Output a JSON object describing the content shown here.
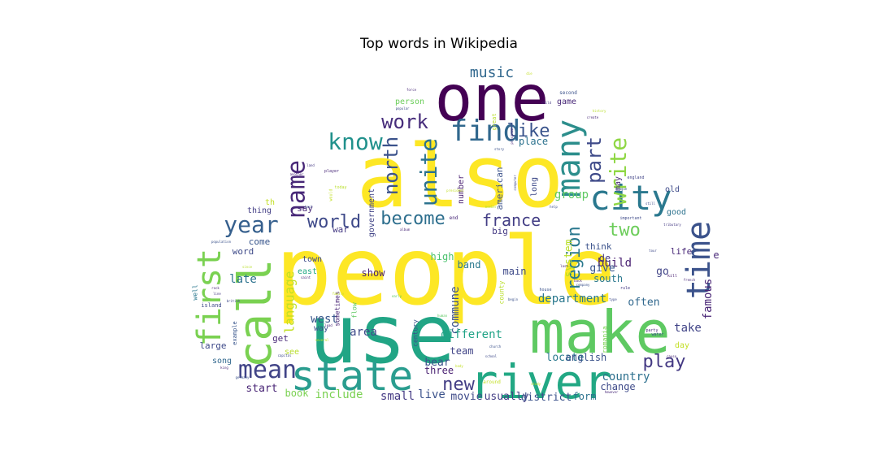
{
  "chart_data": {
    "type": "wordcloud",
    "title": "Top words in Wikipedia",
    "shape": "cloud",
    "colormap": "viridis",
    "words": [
      {
        "text": "people",
        "weight": 1.0,
        "color": "#fde725"
      },
      {
        "text": "also",
        "weight": 0.97,
        "color": "#fde725"
      },
      {
        "text": "use",
        "weight": 0.93,
        "color": "#21a585"
      },
      {
        "text": "make",
        "weight": 0.82,
        "color": "#5ec962"
      },
      {
        "text": "one",
        "weight": 0.78,
        "color": "#440154"
      },
      {
        "text": "river",
        "weight": 0.62,
        "color": "#22a884"
      },
      {
        "text": "call",
        "weight": 0.6,
        "color": "#7ad151"
      },
      {
        "text": "state",
        "weight": 0.52,
        "color": "#2a9d8f"
      },
      {
        "text": "time",
        "weight": 0.45,
        "color": "#3b528b"
      },
      {
        "text": "many",
        "weight": 0.44,
        "color": "#2c8e8c"
      },
      {
        "text": "city",
        "weight": 0.43,
        "color": "#2a788e"
      },
      {
        "text": "first",
        "weight": 0.43,
        "color": "#7ad151"
      },
      {
        "text": "find",
        "weight": 0.4,
        "color": "#31688e"
      },
      {
        "text": "mean",
        "weight": 0.34,
        "color": "#414487"
      },
      {
        "text": "name",
        "weight": 0.33,
        "color": "#482878"
      },
      {
        "text": "year",
        "weight": 0.32,
        "color": "#355f8d"
      },
      {
        "text": "know",
        "weight": 0.32,
        "color": "#21918c"
      },
      {
        "text": "write",
        "weight": 0.31,
        "color": "#8fd744"
      },
      {
        "text": "unite",
        "weight": 0.3,
        "color": "#2c728e"
      },
      {
        "text": "part",
        "weight": 0.29,
        "color": "#3e4a89"
      },
      {
        "text": "work",
        "weight": 0.28,
        "color": "#472d7b"
      },
      {
        "text": "north",
        "weight": 0.27,
        "color": "#3b528b"
      },
      {
        "text": "world",
        "weight": 0.27,
        "color": "#3e4989"
      },
      {
        "text": "become",
        "weight": 0.27,
        "color": "#2e6f8e"
      },
      {
        "text": "region",
        "weight": 0.25,
        "color": "#2a788e"
      },
      {
        "text": "two",
        "weight": 0.25,
        "color": "#6ccd5a"
      },
      {
        "text": "play",
        "weight": 0.25,
        "color": "#443983"
      },
      {
        "text": "new",
        "weight": 0.24,
        "color": "#433e85"
      },
      {
        "text": "like",
        "weight": 0.23,
        "color": "#3a548c"
      },
      {
        "text": "france",
        "weight": 0.22,
        "color": "#433e85"
      },
      {
        "text": "music",
        "weight": 0.2,
        "color": "#31688e"
      },
      {
        "text": "language",
        "weight": 0.17,
        "color": "#c2df23"
      },
      {
        "text": "department",
        "weight": 0.17,
        "color": "#2a788e"
      },
      {
        "text": "commune",
        "weight": 0.16,
        "color": "#3b528b"
      },
      {
        "text": "famous",
        "weight": 0.15,
        "color": "#482475"
      },
      {
        "text": "different",
        "weight": 0.15,
        "color": "#20a386"
      },
      {
        "text": "country",
        "weight": 0.15,
        "color": "#2d708e"
      },
      {
        "text": "include",
        "weight": 0.15,
        "color": "#7ad151"
      },
      {
        "text": "live",
        "weight": 0.15,
        "color": "#3b528b"
      },
      {
        "text": "take",
        "weight": 0.15,
        "color": "#414487"
      },
      {
        "text": "build",
        "weight": 0.15,
        "color": "#481f71"
      },
      {
        "text": "group",
        "weight": 0.14,
        "color": "#5ec962"
      },
      {
        "text": "system",
        "weight": 0.13,
        "color": "#b8de29"
      },
      {
        "text": "late",
        "weight": 0.14,
        "color": "#2c728e"
      },
      {
        "text": "west",
        "weight": 0.14,
        "color": "#39568c"
      },
      {
        "text": "area",
        "weight": 0.14,
        "color": "#3e4a89"
      },
      {
        "text": "small",
        "weight": 0.14,
        "color": "#443983"
      },
      {
        "text": "movie",
        "weight": 0.13,
        "color": "#3e4a89"
      },
      {
        "text": "usually",
        "weight": 0.13,
        "color": "#433e85"
      },
      {
        "text": "district",
        "weight": 0.13,
        "color": "#3b528b"
      },
      {
        "text": "form",
        "weight": 0.12,
        "color": "#2c728e"
      },
      {
        "text": "change",
        "weight": 0.12,
        "color": "#3e4a89"
      },
      {
        "text": "locate",
        "weight": 0.13,
        "color": "#2a788e"
      },
      {
        "text": "english",
        "weight": 0.12,
        "color": "#3b528b"
      },
      {
        "text": "start",
        "weight": 0.13,
        "color": "#482475"
      },
      {
        "text": "book",
        "weight": 0.12,
        "color": "#7ad151"
      },
      {
        "text": "three",
        "weight": 0.12,
        "color": "#481f71"
      },
      {
        "text": "bear",
        "weight": 0.13,
        "color": "#3b528b"
      },
      {
        "text": "team",
        "weight": 0.12,
        "color": "#414487"
      },
      {
        "text": "show",
        "weight": 0.12,
        "color": "#481f71"
      },
      {
        "text": "band",
        "weight": 0.12,
        "color": "#2a788e"
      },
      {
        "text": "high",
        "weight": 0.12,
        "color": "#4ac16d"
      },
      {
        "text": "main",
        "weight": 0.12,
        "color": "#3e4a89"
      },
      {
        "text": "give",
        "weight": 0.13,
        "color": "#39568c"
      },
      {
        "text": "south",
        "weight": 0.12,
        "color": "#2a788e"
      },
      {
        "text": "often",
        "weight": 0.13,
        "color": "#31688e"
      },
      {
        "text": "go",
        "weight": 0.13,
        "color": "#414487"
      },
      {
        "text": "de",
        "weight": 0.12,
        "color": "#443983"
      },
      {
        "text": "life",
        "weight": 0.11,
        "color": "#482878"
      },
      {
        "text": "good",
        "weight": 0.1,
        "color": "#2c728e"
      },
      {
        "text": "old",
        "weight": 0.1,
        "color": "#3e4a89"
      },
      {
        "text": "may",
        "weight": 0.1,
        "color": "#482878"
      },
      {
        "text": "think",
        "weight": 0.11,
        "color": "#3b528b"
      },
      {
        "text": "big",
        "weight": 0.11,
        "color": "#443983"
      },
      {
        "text": "game",
        "weight": 0.1,
        "color": "#482878"
      },
      {
        "text": "place",
        "weight": 0.12,
        "color": "#2c728e"
      },
      {
        "text": "long",
        "weight": 0.1,
        "color": "#3e4a89"
      },
      {
        "text": "american",
        "weight": 0.11,
        "color": "#3b528b"
      },
      {
        "text": "number",
        "weight": 0.1,
        "color": "#481f71"
      },
      {
        "text": "government",
        "weight": 0.1,
        "color": "#414487"
      },
      {
        "text": "person",
        "weight": 0.1,
        "color": "#6ccd5a"
      },
      {
        "text": "word",
        "weight": 0.11,
        "color": "#3e4a89"
      },
      {
        "text": "come",
        "weight": 0.11,
        "color": "#39568c"
      },
      {
        "text": "thing",
        "weight": 0.1,
        "color": "#433e85"
      },
      {
        "text": "say",
        "weight": 0.11,
        "color": "#482878"
      },
      {
        "text": "war",
        "weight": 0.11,
        "color": "#443983"
      },
      {
        "text": "th",
        "weight": 0.1,
        "color": "#c2df23"
      },
      {
        "text": "town",
        "weight": 0.1,
        "color": "#3e4a89"
      },
      {
        "text": "east",
        "weight": 0.1,
        "color": "#22a884"
      },
      {
        "text": "way",
        "weight": 0.1,
        "color": "#3b528b"
      },
      {
        "text": "get",
        "weight": 0.11,
        "color": "#482878"
      },
      {
        "text": "large",
        "weight": 0.11,
        "color": "#3e4a89"
      },
      {
        "text": "song",
        "weight": 0.1,
        "color": "#31688e"
      },
      {
        "text": "see",
        "weight": 0.1,
        "color": "#b8de29"
      },
      {
        "text": "day",
        "weight": 0.1,
        "color": "#c2df23"
      },
      {
        "text": "flow",
        "weight": 0.08,
        "color": "#5ec962"
      },
      {
        "text": "century",
        "weight": 0.08,
        "color": "#3b528b"
      },
      {
        "text": "county",
        "weight": 0.08,
        "color": "#b8de29"
      },
      {
        "text": "romania",
        "weight": 0.08,
        "color": "#7ad151"
      },
      {
        "text": "sometimes",
        "weight": 0.08,
        "color": "#482475"
      },
      {
        "text": "island",
        "weight": 0.07,
        "color": "#3e4a89"
      },
      {
        "text": "example",
        "weight": 0.07,
        "color": "#39568c"
      },
      {
        "text": "well",
        "weight": 0.08,
        "color": "#2a788e"
      },
      {
        "text": "great",
        "weight": 0.07,
        "color": "#b8de29"
      },
      {
        "text": "second",
        "weight": 0.06,
        "color": "#3b528b"
      },
      {
        "text": "end",
        "weight": 0.06,
        "color": "#482878"
      },
      {
        "text": "today",
        "weight": 0.05,
        "color": "#b8de29"
      },
      {
        "text": "player",
        "weight": 0.05,
        "color": "#482878"
      },
      {
        "text": "around",
        "weight": 0.06,
        "color": "#c2df23"
      },
      {
        "text": "important",
        "weight": 0.05,
        "color": "#3e4a89"
      },
      {
        "text": "house",
        "weight": 0.05,
        "color": "#3b528b"
      },
      {
        "text": "rule",
        "weight": 0.05,
        "color": "#443983"
      },
      {
        "text": "kill",
        "weight": 0.05,
        "color": "#481f71"
      },
      {
        "text": "water",
        "weight": 0.05,
        "color": "#3b528b"
      },
      {
        "text": "party",
        "weight": 0.05,
        "color": "#482878"
      },
      {
        "text": "england",
        "weight": 0.05,
        "color": "#414487"
      },
      {
        "text": "league",
        "weight": 0.04,
        "color": "#3b528b"
      },
      {
        "text": "still",
        "weight": 0.04,
        "color": "#3e4a89"
      },
      {
        "text": "create",
        "weight": 0.04,
        "color": "#482878"
      },
      {
        "text": "history",
        "weight": 0.04,
        "color": "#b8de29"
      },
      {
        "text": "force",
        "weight": 0.04,
        "color": "#482878"
      },
      {
        "text": "popular",
        "weight": 0.04,
        "color": "#3e4a89"
      },
      {
        "text": "child",
        "weight": 0.04,
        "color": "#443983"
      },
      {
        "text": "province",
        "weight": 0.04,
        "color": "#482878"
      },
      {
        "text": "story",
        "weight": 0.04,
        "color": "#3b528b"
      },
      {
        "text": "computer",
        "weight": 0.04,
        "color": "#3e4a89"
      },
      {
        "text": "member",
        "weight": 0.04,
        "color": "#b8de29"
      },
      {
        "text": "population",
        "weight": 0.04,
        "color": "#3b528b"
      },
      {
        "text": "another",
        "weight": 0.04,
        "color": "#482878"
      },
      {
        "text": "land",
        "weight": 0.04,
        "color": "#443983"
      },
      {
        "text": "would",
        "weight": 0.05,
        "color": "#c2df23"
      },
      {
        "text": "best",
        "weight": 0.04,
        "color": "#3e4a89"
      },
      {
        "text": "album",
        "weight": 0.04,
        "color": "#482878"
      },
      {
        "text": "president",
        "weight": 0.04,
        "color": "#c2df23"
      },
      {
        "text": "family",
        "weight": 0.04,
        "color": "#c2df23"
      },
      {
        "text": "early",
        "weight": 0.04,
        "color": "#5ec962"
      },
      {
        "text": "british",
        "weight": 0.04,
        "color": "#3e4a89"
      },
      {
        "text": "rock",
        "weight": 0.04,
        "color": "#482878"
      },
      {
        "text": "line",
        "weight": 0.04,
        "color": "#443983"
      },
      {
        "text": "since",
        "weight": 0.04,
        "color": "#b8de29"
      },
      {
        "text": "saint",
        "weight": 0.04,
        "color": "#482878"
      },
      {
        "text": "capital",
        "weight": 0.04,
        "color": "#3e4a89"
      },
      {
        "text": "king",
        "weight": 0.04,
        "color": "#482878"
      },
      {
        "text": "germany",
        "weight": 0.04,
        "color": "#3b528b"
      },
      {
        "text": "several",
        "weight": 0.04,
        "color": "#c2df23"
      },
      {
        "text": "lead",
        "weight": 0.04,
        "color": "#482878"
      },
      {
        "text": "human",
        "weight": 0.04,
        "color": "#5ec962"
      },
      {
        "text": "school",
        "weight": 0.04,
        "color": "#3e4a89"
      },
      {
        "text": "church",
        "weight": 0.04,
        "color": "#3b528b"
      },
      {
        "text": "body",
        "weight": 0.04,
        "color": "#c2df23"
      },
      {
        "text": "study",
        "weight": 0.04,
        "color": "#c2df23"
      },
      {
        "text": "however",
        "weight": 0.04,
        "color": "#482878"
      },
      {
        "text": "cause",
        "weight": 0.04,
        "color": "#482878"
      },
      {
        "text": "begin",
        "weight": 0.04,
        "color": "#3b528b"
      },
      {
        "text": "type",
        "weight": 0.04,
        "color": "#3e4a89"
      },
      {
        "text": "back",
        "weight": 0.04,
        "color": "#482878"
      },
      {
        "text": "company",
        "weight": 0.04,
        "color": "#3b528b"
      },
      {
        "text": "last",
        "weight": 0.04,
        "color": "#482878"
      },
      {
        "text": "tour",
        "weight": 0.04,
        "color": "#3e4a89"
      },
      {
        "text": "tributary",
        "weight": 0.04,
        "color": "#443983"
      },
      {
        "text": "help",
        "weight": 0.04,
        "color": "#3b528b"
      },
      {
        "text": "french",
        "weight": 0.04,
        "color": "#482878"
      },
      {
        "text": "die",
        "weight": 0.04,
        "color": "#c2df23"
      },
      {
        "text": "e",
        "weight": 0.07,
        "color": "#482878"
      }
    ]
  }
}
